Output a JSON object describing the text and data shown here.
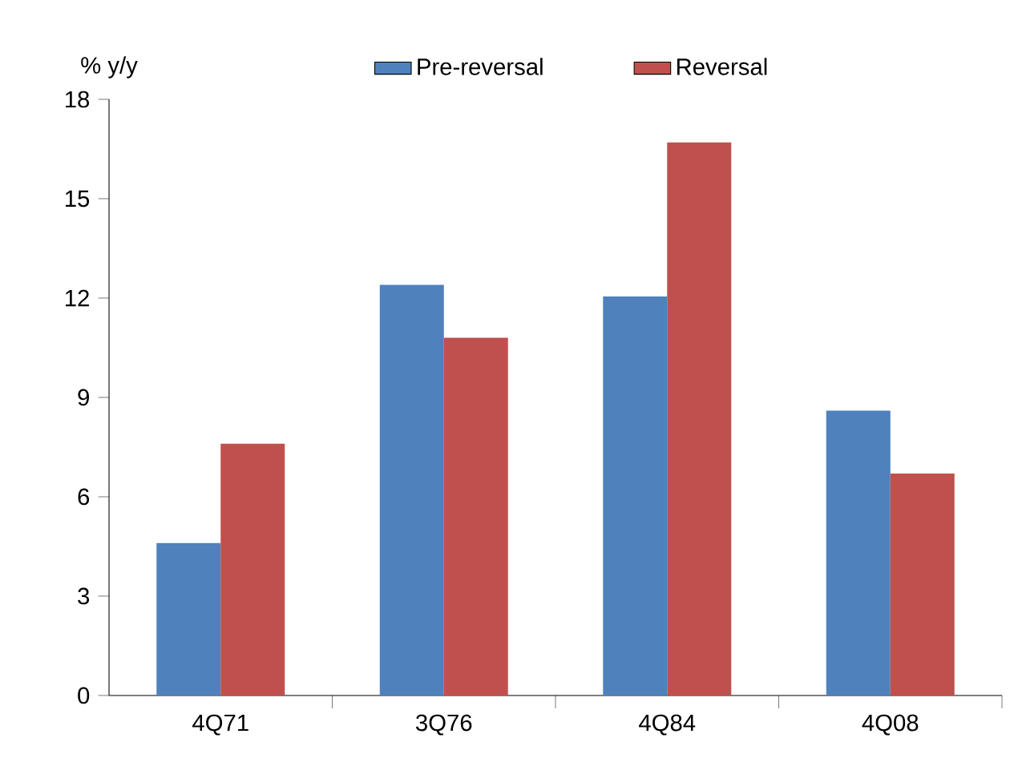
{
  "chart_data": {
    "type": "bar",
    "ylabel": "% y/y",
    "categories": [
      "4Q71",
      "3Q76",
      "4Q84",
      "4Q08"
    ],
    "series": [
      {
        "name": "Pre-reversal",
        "color": "#4f81bd",
        "values": [
          4.6,
          12.4,
          12.05,
          8.6
        ]
      },
      {
        "name": "Reversal",
        "color": "#c0504d",
        "values": [
          7.6,
          10.8,
          16.7,
          6.7
        ]
      }
    ],
    "ylim": [
      0,
      18
    ],
    "yticks": [
      0,
      3,
      6,
      9,
      12,
      15,
      18
    ],
    "legend": "top",
    "grid": false
  }
}
